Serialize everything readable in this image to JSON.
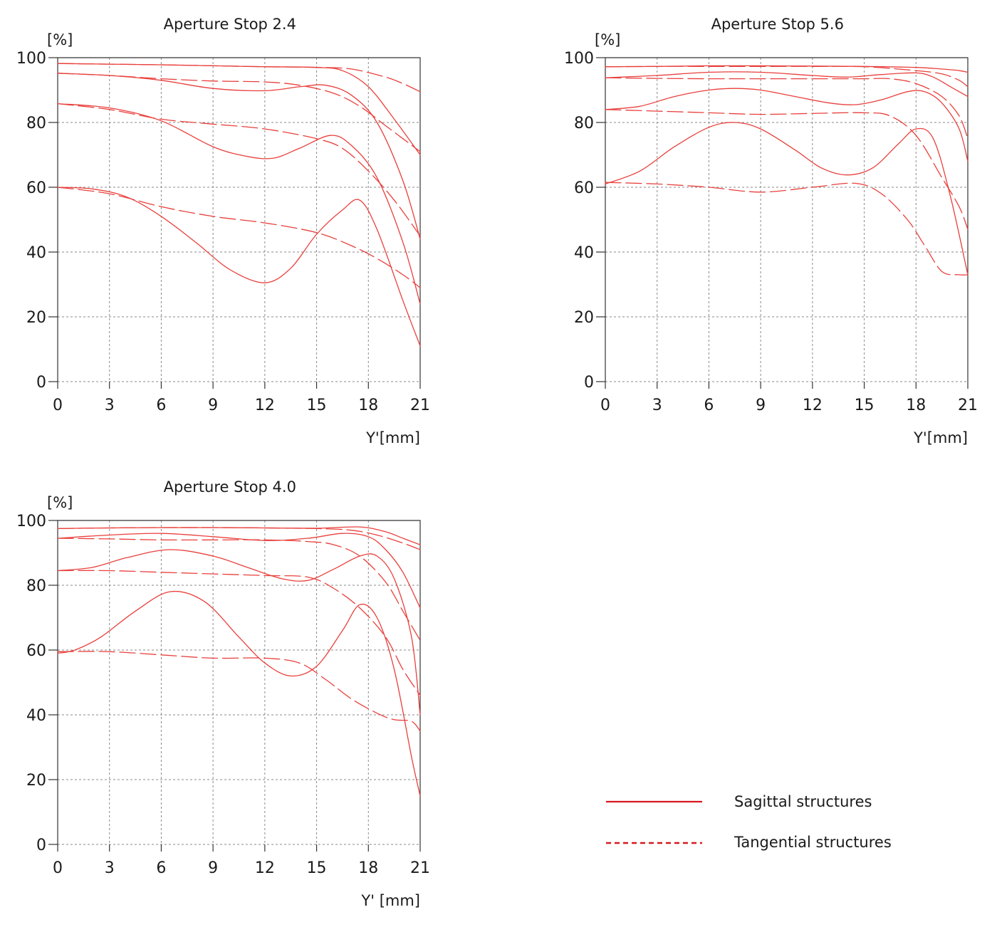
{
  "colors": {
    "curve": "#e8403c",
    "legend_line": "#d7191f"
  },
  "legend": {
    "sagittal_label": "Sagittal structures",
    "tangential_label": "Tangential structures"
  },
  "chart_data": [
    {
      "type": "line",
      "title": "Aperture Stop 2.4",
      "ylabel": "[%]",
      "xlabel": "Y'[mm]",
      "xlim": [
        0,
        21
      ],
      "ylim": [
        0,
        100
      ],
      "xticks": [
        "0",
        "3",
        "6",
        "9",
        "12",
        "15",
        "18",
        "21"
      ],
      "yticks": [
        "0",
        "20",
        "40",
        "60",
        "80",
        "100"
      ],
      "series": [
        {
          "name": "Sagittal 1",
          "style": "solid",
          "x": [
            0,
            3,
            6,
            9,
            12,
            15,
            16.5,
            18,
            19.5,
            21
          ],
          "y": [
            98.2,
            98,
            97.8,
            97.5,
            97.2,
            97,
            96,
            91,
            81,
            70
          ]
        },
        {
          "name": "Sagittal 2",
          "style": "solid",
          "x": [
            0,
            3,
            6,
            9,
            12,
            14,
            15.5,
            17,
            18.5,
            20,
            21
          ],
          "y": [
            95.2,
            94.5,
            93,
            90.5,
            89.8,
            91,
            91.5,
            88.5,
            80,
            62,
            44
          ]
        },
        {
          "name": "Sagittal 3",
          "style": "solid",
          "x": [
            0,
            3,
            6,
            9,
            11,
            12.5,
            14,
            15.8,
            17,
            18.5,
            20,
            21
          ],
          "y": [
            85.8,
            84.5,
            80.5,
            72.5,
            69.5,
            69,
            72,
            76,
            73,
            63,
            43,
            24
          ]
        },
        {
          "name": "Sagittal 4",
          "style": "solid",
          "x": [
            0,
            2,
            4,
            6,
            8,
            10,
            12,
            13.5,
            15,
            16.5,
            17.5,
            18.5,
            20,
            21
          ],
          "y": [
            60,
            59.5,
            57,
            51,
            43,
            34.5,
            30.5,
            35,
            45.5,
            53,
            56,
            47,
            25,
            11
          ]
        },
        {
          "name": "Tangential 1",
          "style": "dashed",
          "x": [
            0,
            3,
            6,
            9,
            12,
            15,
            17,
            19,
            20,
            21
          ],
          "y": [
            98.2,
            98,
            97.8,
            97.5,
            97.2,
            97,
            96.5,
            94,
            92,
            89.5
          ]
        },
        {
          "name": "Tangential 2",
          "style": "dashed",
          "x": [
            0,
            3,
            6,
            9,
            12,
            14,
            16,
            17.5,
            19,
            20,
            21
          ],
          "y": [
            95.2,
            94.5,
            93.5,
            92.8,
            92.5,
            91.5,
            89,
            85,
            79,
            75,
            71
          ]
        },
        {
          "name": "Tangential 3",
          "style": "dashed",
          "x": [
            0,
            3,
            6,
            9,
            12,
            15,
            16.5,
            18,
            19.5,
            21
          ],
          "y": [
            85.8,
            84,
            81,
            79.5,
            78,
            75,
            72,
            65,
            56,
            45
          ]
        },
        {
          "name": "Tangential 4",
          "style": "dashed",
          "x": [
            0,
            3,
            6,
            9,
            12,
            15,
            17,
            18.5,
            20,
            21
          ],
          "y": [
            60,
            58,
            54,
            51,
            49,
            46,
            42,
            38,
            33,
            29
          ]
        }
      ]
    },
    {
      "type": "line",
      "title": "Aperture Stop 5.6",
      "ylabel": "[%]",
      "xlabel": "Y'[mm]",
      "xlim": [
        0,
        21
      ],
      "ylim": [
        0,
        100
      ],
      "xticks": [
        "0",
        "3",
        "6",
        "9",
        "12",
        "15",
        "18",
        "21"
      ],
      "yticks": [
        "0",
        "20",
        "40",
        "60",
        "80",
        "100"
      ],
      "series": [
        {
          "name": "Sagittal 1",
          "style": "solid",
          "x": [
            0,
            3,
            6,
            9,
            12,
            15,
            18,
            19.5,
            20.5,
            21
          ],
          "y": [
            97.2,
            97.3,
            97.5,
            97.5,
            97.4,
            97.3,
            97,
            96.5,
            96,
            95.5
          ]
        },
        {
          "name": "Sagittal 2",
          "style": "solid",
          "x": [
            0,
            3,
            6,
            9,
            12,
            14,
            16,
            18,
            19,
            20,
            21
          ],
          "y": [
            93.8,
            94.5,
            95.5,
            95.5,
            94.5,
            94,
            94.8,
            95.3,
            94,
            91,
            88
          ]
        },
        {
          "name": "Sagittal 3",
          "style": "solid",
          "x": [
            0,
            2,
            4,
            6,
            7.5,
            9,
            11,
            13,
            14.5,
            16,
            17.5,
            18.5,
            19.5,
            20.5,
            21
          ],
          "y": [
            84,
            85,
            88,
            90,
            90.5,
            90,
            88,
            86,
            85.5,
            87,
            89.5,
            89.5,
            86,
            78,
            68
          ]
        },
        {
          "name": "Sagittal 4",
          "style": "solid",
          "x": [
            0,
            2,
            4,
            6,
            7.5,
            9,
            11,
            12.5,
            14,
            15.5,
            17,
            18,
            19,
            20,
            21
          ],
          "y": [
            61,
            65,
            72.5,
            78.5,
            80,
            78,
            71.5,
            66,
            63.8,
            66,
            73.5,
            78,
            75,
            57,
            33
          ]
        },
        {
          "name": "Tangential 1",
          "style": "dashed",
          "x": [
            0,
            3,
            6,
            9,
            12,
            15,
            18,
            19.5,
            20.5,
            21
          ],
          "y": [
            97.2,
            97.3,
            97.3,
            97.3,
            97.3,
            97.2,
            96,
            95,
            93,
            91
          ]
        },
        {
          "name": "Tangential 2",
          "style": "dashed",
          "x": [
            0,
            3,
            6,
            9,
            12,
            15,
            16.5,
            18,
            19.5,
            20.5,
            21
          ],
          "y": [
            93.8,
            93.6,
            93.5,
            93.5,
            93.5,
            93.5,
            93.5,
            92,
            88,
            82,
            75
          ]
        },
        {
          "name": "Tangential 3",
          "style": "dashed",
          "x": [
            0,
            3,
            6,
            9,
            12,
            15,
            16.5,
            18,
            19.5,
            20.5,
            21
          ],
          "y": [
            84,
            83.5,
            83,
            82.5,
            82.8,
            83,
            82,
            76,
            63,
            54,
            47
          ]
        },
        {
          "name": "Tangential 4",
          "style": "dashed",
          "x": [
            0,
            3,
            6,
            9,
            12,
            14.5,
            16,
            17.5,
            18.5,
            19.5,
            20.5,
            21
          ],
          "y": [
            61.5,
            61,
            60,
            58.5,
            60,
            61.2,
            58,
            50,
            42,
            34,
            33,
            33
          ]
        }
      ]
    },
    {
      "type": "line",
      "title": "Aperture Stop 4.0",
      "ylabel": "[%]",
      "xlabel": "Y' [mm]",
      "xlim": [
        0,
        21
      ],
      "ylim": [
        0,
        100
      ],
      "xticks": [
        "0",
        "3",
        "6",
        "9",
        "12",
        "15",
        "18",
        "21"
      ],
      "yticks": [
        "0",
        "20",
        "40",
        "60",
        "80",
        "100"
      ],
      "series": [
        {
          "name": "Sagittal 1",
          "style": "solid",
          "x": [
            0,
            3,
            6,
            9,
            12,
            15,
            17.5,
            19,
            20,
            21
          ],
          "y": [
            97.5,
            97.7,
            97.8,
            97.8,
            97.7,
            97.6,
            98,
            96.5,
            94.5,
            92.5
          ]
        },
        {
          "name": "Sagittal 2",
          "style": "solid",
          "x": [
            0,
            3,
            6,
            9,
            12,
            14.5,
            16.5,
            18,
            19,
            20,
            21
          ],
          "y": [
            94.5,
            95.5,
            96,
            95,
            93.8,
            94.5,
            96,
            95,
            91,
            84,
            73
          ]
        },
        {
          "name": "Sagittal 3",
          "style": "solid",
          "x": [
            0,
            2,
            4,
            6.5,
            9,
            11,
            13,
            14.5,
            16,
            17.5,
            18.5,
            19.5,
            20.5,
            21
          ],
          "y": [
            84.5,
            85.5,
            88.5,
            91,
            89,
            85.5,
            82,
            81.5,
            85,
            89,
            89,
            82,
            64,
            40
          ]
        },
        {
          "name": "Sagittal 4",
          "style": "solid",
          "x": [
            0,
            1,
            2.5,
            4.5,
            6.5,
            8.5,
            10.5,
            12,
            13.5,
            15,
            16.5,
            17.5,
            18.5,
            19.5,
            20.5,
            21
          ],
          "y": [
            59,
            60,
            64,
            72,
            78,
            75,
            64,
            56,
            52,
            55,
            66,
            74,
            70,
            54,
            27,
            15
          ]
        },
        {
          "name": "Tangential 1",
          "style": "dashed",
          "x": [
            0,
            3,
            6,
            9,
            12,
            15,
            17,
            18.5,
            20,
            21
          ],
          "y": [
            97.5,
            97.7,
            97.8,
            97.8,
            97.7,
            97.5,
            97,
            95.5,
            93,
            91
          ]
        },
        {
          "name": "Tangential 2",
          "style": "dashed",
          "x": [
            0,
            3,
            6,
            9,
            12,
            14.5,
            16,
            17.5,
            19,
            20,
            21
          ],
          "y": [
            94.5,
            94.3,
            94,
            94,
            94,
            93.5,
            92.5,
            89,
            81,
            72,
            63
          ]
        },
        {
          "name": "Tangential 3",
          "style": "dashed",
          "x": [
            0,
            3,
            6,
            9,
            12,
            14.5,
            16,
            17.5,
            19,
            20,
            21
          ],
          "y": [
            84.5,
            84.5,
            84,
            83.5,
            83,
            82.5,
            79,
            73,
            64,
            54,
            46
          ]
        },
        {
          "name": "Tangential 4",
          "style": "dashed",
          "x": [
            0,
            3,
            6,
            9,
            12,
            14,
            15.5,
            17,
            18.5,
            19.5,
            20.5,
            21
          ],
          "y": [
            59.5,
            59.5,
            58.5,
            57.5,
            57.5,
            56,
            51,
            45,
            40.5,
            38.5,
            38,
            35
          ]
        }
      ]
    }
  ]
}
